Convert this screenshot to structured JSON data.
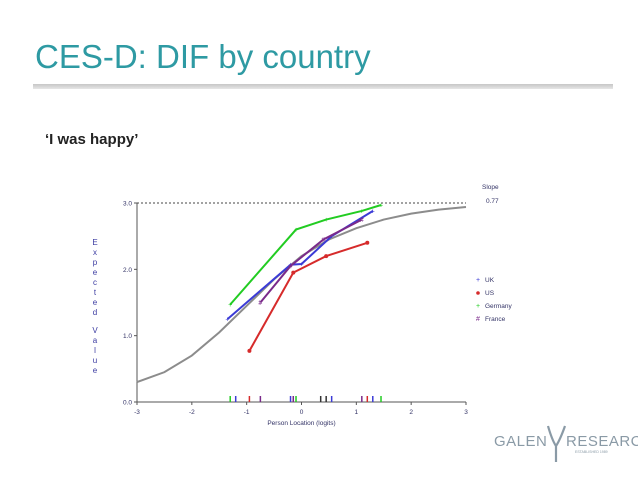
{
  "slide": {
    "title": "CES-D: DIF by country",
    "subtitle": "‘I was happy’"
  },
  "logo": {
    "left_text": "GALEN",
    "right_text": "RESEARCH",
    "tagline": "ESTABLISHED 1989"
  },
  "chart_data": {
    "type": "line",
    "xlabel": "Person Location (logits)",
    "ylabel": "Expected Value",
    "xlim": [
      -3,
      3
    ],
    "ylim": [
      0,
      3
    ],
    "xticks": [
      "-3",
      "-2",
      "-1",
      "0",
      "1",
      "2",
      "3"
    ],
    "yticks": [
      "0.0",
      "1.0",
      "2.0",
      "3.0"
    ],
    "slope_label": "Slope",
    "slope_value": "0.77",
    "max_line_value": 3.0,
    "icc": {
      "x": [
        -3,
        -2.5,
        -2,
        -1.5,
        -1,
        -0.5,
        0,
        0.5,
        1,
        1.5,
        2,
        2.5,
        3
      ],
      "y": [
        0.3,
        0.45,
        0.7,
        1.05,
        1.45,
        1.85,
        2.2,
        2.45,
        2.62,
        2.75,
        2.84,
        2.9,
        2.94
      ]
    },
    "series": [
      {
        "name": "UK",
        "marker": "+",
        "color": "#3b3bd6",
        "x": [
          -1.35,
          -0.2,
          0.0,
          0.55,
          1.3
        ],
        "y": [
          1.25,
          2.07,
          2.08,
          2.5,
          2.88
        ]
      },
      {
        "name": "US",
        "marker": "o",
        "color": "#d62b2b",
        "x": [
          -0.95,
          -0.15,
          0.45,
          1.2
        ],
        "y": [
          0.77,
          1.95,
          2.2,
          2.4
        ]
      },
      {
        "name": "Germany",
        "marker": "+",
        "color": "#22cc22",
        "x": [
          -1.3,
          -0.1,
          0.45,
          1.1,
          1.45
        ],
        "y": [
          1.47,
          2.6,
          2.75,
          2.88,
          2.97
        ]
      },
      {
        "name": "France",
        "marker": "#",
        "color": "#7a2a8a",
        "x": [
          -0.75,
          -0.2,
          0.4,
          1.1
        ],
        "y": [
          1.5,
          2.05,
          2.45,
          2.75
        ]
      }
    ],
    "rug": [
      {
        "x": -1.3,
        "color": "#22cc22"
      },
      {
        "x": -1.2,
        "color": "#3b3bd6"
      },
      {
        "x": -0.95,
        "color": "#d62b2b"
      },
      {
        "x": -0.75,
        "color": "#7a2a8a"
      },
      {
        "x": -0.2,
        "color": "#3b3bd6"
      },
      {
        "x": -0.15,
        "color": "#7a2a8a"
      },
      {
        "x": -0.1,
        "color": "#22cc22"
      },
      {
        "x": 0.35,
        "color": "#333333"
      },
      {
        "x": 0.45,
        "color": "#333333"
      },
      {
        "x": 0.55,
        "color": "#3b3bd6"
      },
      {
        "x": 1.1,
        "color": "#7a2a8a"
      },
      {
        "x": 1.2,
        "color": "#d62b2b"
      },
      {
        "x": 1.3,
        "color": "#3b3bd6"
      },
      {
        "x": 1.45,
        "color": "#22cc22"
      }
    ]
  }
}
